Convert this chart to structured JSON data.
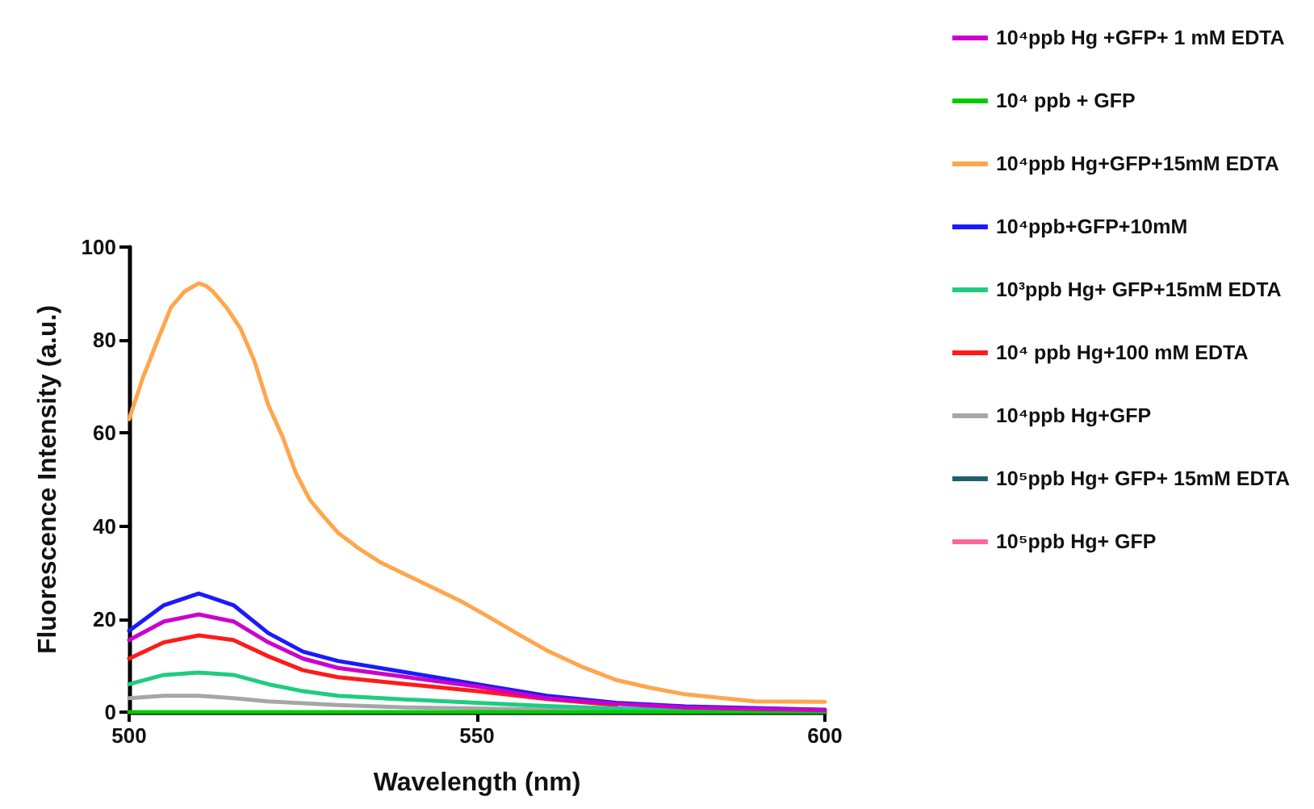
{
  "chart_data": {
    "type": "line",
    "xlabel": "Wavelength (nm)",
    "ylabel": "Fluorescence Intensity (a.u.)",
    "xlim": [
      500,
      600
    ],
    "xticks": [
      500,
      550,
      600
    ],
    "ylim": [
      0,
      100
    ],
    "yticks": [
      0,
      20,
      40,
      60,
      80,
      100
    ],
    "grid": false,
    "legend": "right",
    "marker": "none",
    "line_style": "solid",
    "series": [
      {
        "name": "10⁴ppb Hg +GFP+ 1 mM EDTA",
        "color": "#cc00cc",
        "x": [
          500,
          505,
          510,
          515,
          520,
          525,
          530,
          540,
          550,
          560,
          570,
          580,
          600
        ],
        "values": [
          15.5,
          19.5,
          21,
          19.5,
          15,
          11.5,
          9.5,
          7.5,
          5.5,
          3,
          1.8,
          1,
          0.4
        ]
      },
      {
        "name": "10⁴ ppb + GFP",
        "color": "#00cc00",
        "x": [
          500,
          600
        ],
        "values": [
          0,
          0
        ]
      },
      {
        "name": "10⁴ppb Hg+GFP+15mM EDTA",
        "color": "#ffa64d",
        "x": [
          500,
          502,
          504,
          506,
          508,
          510,
          511,
          512,
          514,
          516,
          518,
          520,
          522,
          524,
          526,
          528,
          530,
          533,
          536,
          540,
          544,
          548,
          552,
          556,
          560,
          565,
          570,
          575,
          580,
          590,
          600
        ],
        "values": [
          63,
          72,
          79.6,
          87,
          90.5,
          92.2,
          91.7,
          90.5,
          87,
          82.5,
          75.5,
          66,
          59.4,
          51.3,
          45.6,
          42,
          38.6,
          35.2,
          32.3,
          29.4,
          26.5,
          23.6,
          20.2,
          16.7,
          13.3,
          9.8,
          6.9,
          5.2,
          3.8,
          2.3,
          2.2
        ]
      },
      {
        "name": "10⁴ppb+GFP+10mM",
        "color": "#1a1aff",
        "x": [
          500,
          505,
          510,
          515,
          520,
          525,
          530,
          540,
          550,
          560,
          570,
          580,
          600
        ],
        "values": [
          17.5,
          23,
          25.5,
          23,
          17,
          13,
          11,
          8.5,
          6,
          3.5,
          2,
          1.2,
          0.5
        ]
      },
      {
        "name": "10³ppb Hg+ GFP+15mM EDTA",
        "color": "#1fcc80",
        "x": [
          500,
          505,
          510,
          515,
          520,
          525,
          530,
          540,
          550,
          560,
          570,
          580,
          600
        ],
        "values": [
          6,
          8,
          8.5,
          8,
          6,
          4.5,
          3.5,
          2.7,
          2,
          1.3,
          0.8,
          0.5,
          0.2
        ]
      },
      {
        "name": "10⁴ ppb Hg+100 mM EDTA",
        "color": "#ff1a1a",
        "x": [
          500,
          505,
          510,
          515,
          520,
          525,
          530,
          540,
          550,
          560,
          570
        ],
        "values": [
          11.5,
          15,
          16.5,
          15.5,
          12,
          9,
          7.5,
          6,
          4.5,
          2.8,
          1.5
        ]
      },
      {
        "name": "10⁴ppb Hg+GFP",
        "color": "#a6a6a6",
        "x": [
          500,
          505,
          510,
          515,
          520,
          530,
          540,
          550,
          560,
          580,
          600
        ],
        "values": [
          3,
          3.5,
          3.5,
          3,
          2.3,
          1.5,
          1,
          0.8,
          0.5,
          0.3,
          0.2
        ]
      },
      {
        "name": "10⁵ppb Hg+ GFP+ 15mM EDTA",
        "color": "#1f5f6f"
      },
      {
        "name": "10⁵ppb Hg+ GFP",
        "color": "#ff6699"
      }
    ]
  }
}
